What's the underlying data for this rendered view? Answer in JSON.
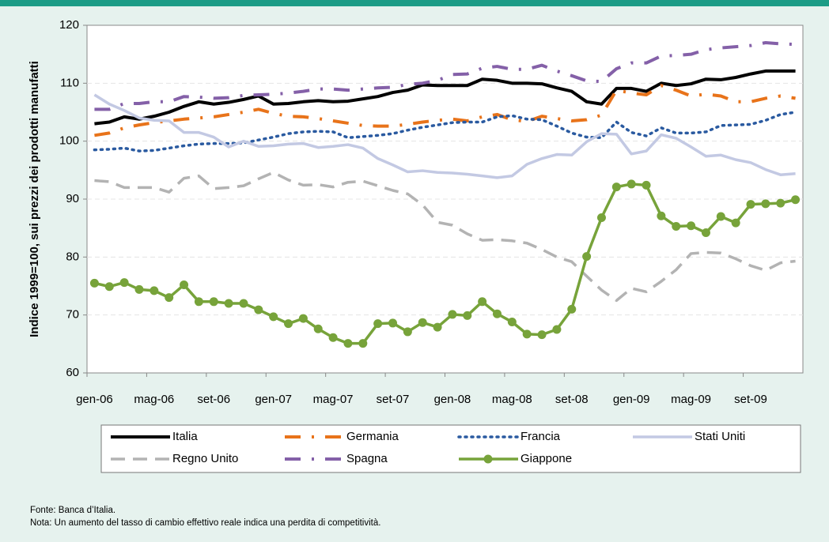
{
  "chart_data": {
    "type": "line",
    "ylabel": "Indice 1999=100,  sui prezzi dei prodotti manufatti",
    "categories": [
      "gen-06",
      null,
      null,
      null,
      "mag-06",
      null,
      null,
      null,
      "set-06",
      null,
      null,
      null,
      "gen-07",
      null,
      null,
      null,
      "mag-07",
      null,
      null,
      null,
      "set-07",
      null,
      null,
      null,
      "gen-08",
      null,
      null,
      null,
      "mag-08",
      null,
      null,
      null,
      "set-08",
      null,
      null,
      null,
      "gen-09",
      null,
      null,
      null,
      "mag-09",
      null,
      null,
      null,
      "set-09",
      null,
      null,
      null
    ],
    "ylim": [
      60,
      120
    ],
    "yticks": [
      60,
      70,
      80,
      90,
      100,
      110,
      120
    ],
    "grid": true,
    "series": [
      {
        "name": "Italia",
        "color": "#000000",
        "style": "solid",
        "width": 4,
        "values": [
          103,
          103.3,
          104.2,
          103.8,
          104.3,
          105,
          106,
          106.8,
          106.4,
          106.7,
          107.2,
          107.8,
          106.4,
          106.5,
          106.8,
          107,
          106.8,
          106.9,
          107.3,
          107.7,
          108.4,
          108.8,
          109.7,
          109.6,
          109.6,
          109.6,
          110.7,
          110.5,
          110,
          110,
          109.9,
          109.2,
          108.6,
          106.8,
          106.4,
          109.1,
          109.1,
          108.6,
          110,
          109.6,
          109.9,
          110.7,
          110.6,
          111,
          111.6,
          112.1,
          112.1,
          112.1
        ]
      },
      {
        "name": "Germania",
        "color": "#e8731a",
        "style": "dashdot",
        "width": 4,
        "values": [
          101,
          101.4,
          102.3,
          102.8,
          103.2,
          103.5,
          103.8,
          104,
          104.2,
          104.6,
          105,
          105.5,
          104.8,
          104.3,
          104.2,
          103.9,
          103.5,
          103.1,
          102.7,
          102.6,
          102.6,
          102.9,
          103.3,
          103.6,
          103.8,
          103.5,
          104.2,
          104.6,
          103.7,
          103.4,
          104.3,
          103.9,
          103.5,
          103.7,
          104.5,
          108.8,
          108.3,
          108,
          109.6,
          108.8,
          107.8,
          108.1,
          107.8,
          106.8,
          106.8,
          107.4,
          107.8,
          107.4
        ]
      },
      {
        "name": "Francia",
        "color": "#2a5aa0",
        "style": "dotted",
        "width": 3.5,
        "values": [
          98.5,
          98.6,
          98.8,
          98.3,
          98.4,
          98.8,
          99.2,
          99.5,
          99.6,
          99.6,
          99.7,
          100.2,
          100.7,
          101.3,
          101.6,
          101.7,
          101.6,
          100.6,
          100.8,
          101,
          101.3,
          101.9,
          102.4,
          102.8,
          103.2,
          103.3,
          103.3,
          104.2,
          104.4,
          103.8,
          103.7,
          102.6,
          101.4,
          100.7,
          100.6,
          103.3,
          101.5,
          100.9,
          102.3,
          101.4,
          101.4,
          101.6,
          102.7,
          102.8,
          102.9,
          103.6,
          104.6,
          105
        ]
      },
      {
        "name": "Stati Uniti",
        "color": "#c3c9e3",
        "style": "solid",
        "width": 3.5,
        "values": [
          108,
          106.4,
          105.3,
          104,
          103.6,
          103.5,
          101.5,
          101.5,
          100.7,
          99,
          100,
          99.1,
          99.2,
          99.5,
          99.6,
          98.9,
          99.1,
          99.4,
          98.8,
          97,
          95.9,
          94.7,
          94.9,
          94.6,
          94.5,
          94.3,
          94,
          93.7,
          94,
          96,
          97,
          97.7,
          97.6,
          99.9,
          101.3,
          101.2,
          97.8,
          98.3,
          101.1,
          100.5,
          99,
          97.4,
          97.6,
          96.8,
          96.3,
          95.1,
          94.2,
          94.4
        ]
      },
      {
        "name": "Regno Unito",
        "color": "#b3b3b3",
        "style": "dashed",
        "width": 3.5,
        "values": [
          93.2,
          93,
          92,
          92,
          92,
          91.2,
          93.6,
          94,
          91.8,
          92,
          92.3,
          93.5,
          94.6,
          93.3,
          92.4,
          92.5,
          92.1,
          92.9,
          93.1,
          92.3,
          91.5,
          90.9,
          89,
          86,
          85.5,
          84,
          82.9,
          83,
          82.8,
          82.4,
          81.3,
          80,
          79.2,
          76.7,
          74.3,
          72.5,
          74.6,
          74,
          75.8,
          77.8,
          80.6,
          80.8,
          80.7,
          79.7,
          78.5,
          77.7,
          79,
          79.3
        ]
      },
      {
        "name": "Spagna",
        "color": "#8460a8",
        "style": "dashdot",
        "width": 4,
        "values": [
          105.5,
          105.5,
          106.5,
          106.5,
          106.8,
          106.8,
          107.7,
          107.6,
          107.4,
          107.5,
          107.9,
          108,
          108.1,
          108.3,
          108.6,
          109,
          109,
          108.8,
          109,
          109.2,
          109.3,
          109.8,
          110,
          110.5,
          111.5,
          111.6,
          112.6,
          112.9,
          112.4,
          112.4,
          113.1,
          112.1,
          111.3,
          110.4,
          110.3,
          112.5,
          113.5,
          113.5,
          114.7,
          114.8,
          115,
          115.8,
          116.1,
          116.3,
          116.5,
          117,
          116.8,
          116.7
        ]
      },
      {
        "name": "Giappone",
        "color": "#77a33a",
        "style": "solid",
        "width": 3.5,
        "marker": "circle",
        "values": [
          75.5,
          74.9,
          75.6,
          74.4,
          74.2,
          73,
          75.2,
          72.3,
          72.3,
          72,
          72,
          70.9,
          69.7,
          68.5,
          69.4,
          67.6,
          66.1,
          65.1,
          65.1,
          68.5,
          68.6,
          67.1,
          68.7,
          67.9,
          70.1,
          69.9,
          72.3,
          70.2,
          68.8,
          66.7,
          66.6,
          67.5,
          71,
          80.1,
          86.8,
          92.1,
          92.6,
          92.4,
          87.1,
          85.3,
          85.4,
          84.2,
          87,
          85.9,
          89.1,
          89.2,
          89.3,
          89.9
        ]
      }
    ]
  },
  "footer": {
    "source": "Fonte: Banca d’Italia.",
    "note": "Nota: Un aumento del tasso di cambio effettivo reale indica una perdita di competitività."
  }
}
